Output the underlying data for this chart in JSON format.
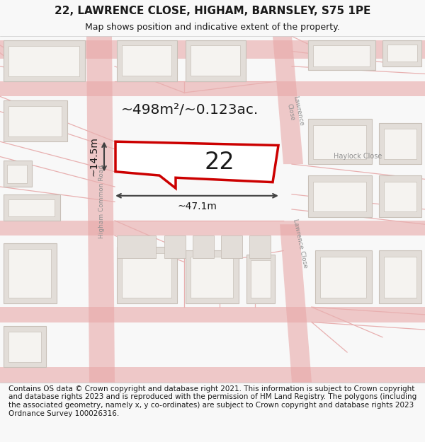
{
  "title": "22, LAWRENCE CLOSE, HIGHAM, BARNSLEY, S75 1PE",
  "subtitle": "Map shows position and indicative extent of the property.",
  "footer": "Contains OS data © Crown copyright and database right 2021. This information is subject to Crown copyright and database rights 2023 and is reproduced with the permission of HM Land Registry. The polygons (including the associated geometry, namely x, y co-ordinates) are subject to Crown copyright and database rights 2023 Ordnance Survey 100026316.",
  "area_label": "~498m²/~0.123ac.",
  "width_label": "~47.1m",
  "height_label": "~14.5m",
  "number_label": "22",
  "bg_color": "#f8f8f8",
  "map_bg": "#eeebe7",
  "plot_fill": "#ffffff",
  "plot_edge": "#cc0000",
  "road_color": "#e8a8a8",
  "building_color": "#e2ddd8",
  "building_edge": "#c8c0b8",
  "building_inner": "#f5f3f0",
  "road_line_color": "#e8b0b0",
  "dim_color": "#404040",
  "text_color": "#1a1a1a",
  "road_label_color": "#909090",
  "title_fontsize": 11,
  "subtitle_fontsize": 9,
  "footer_fontsize": 7.5
}
